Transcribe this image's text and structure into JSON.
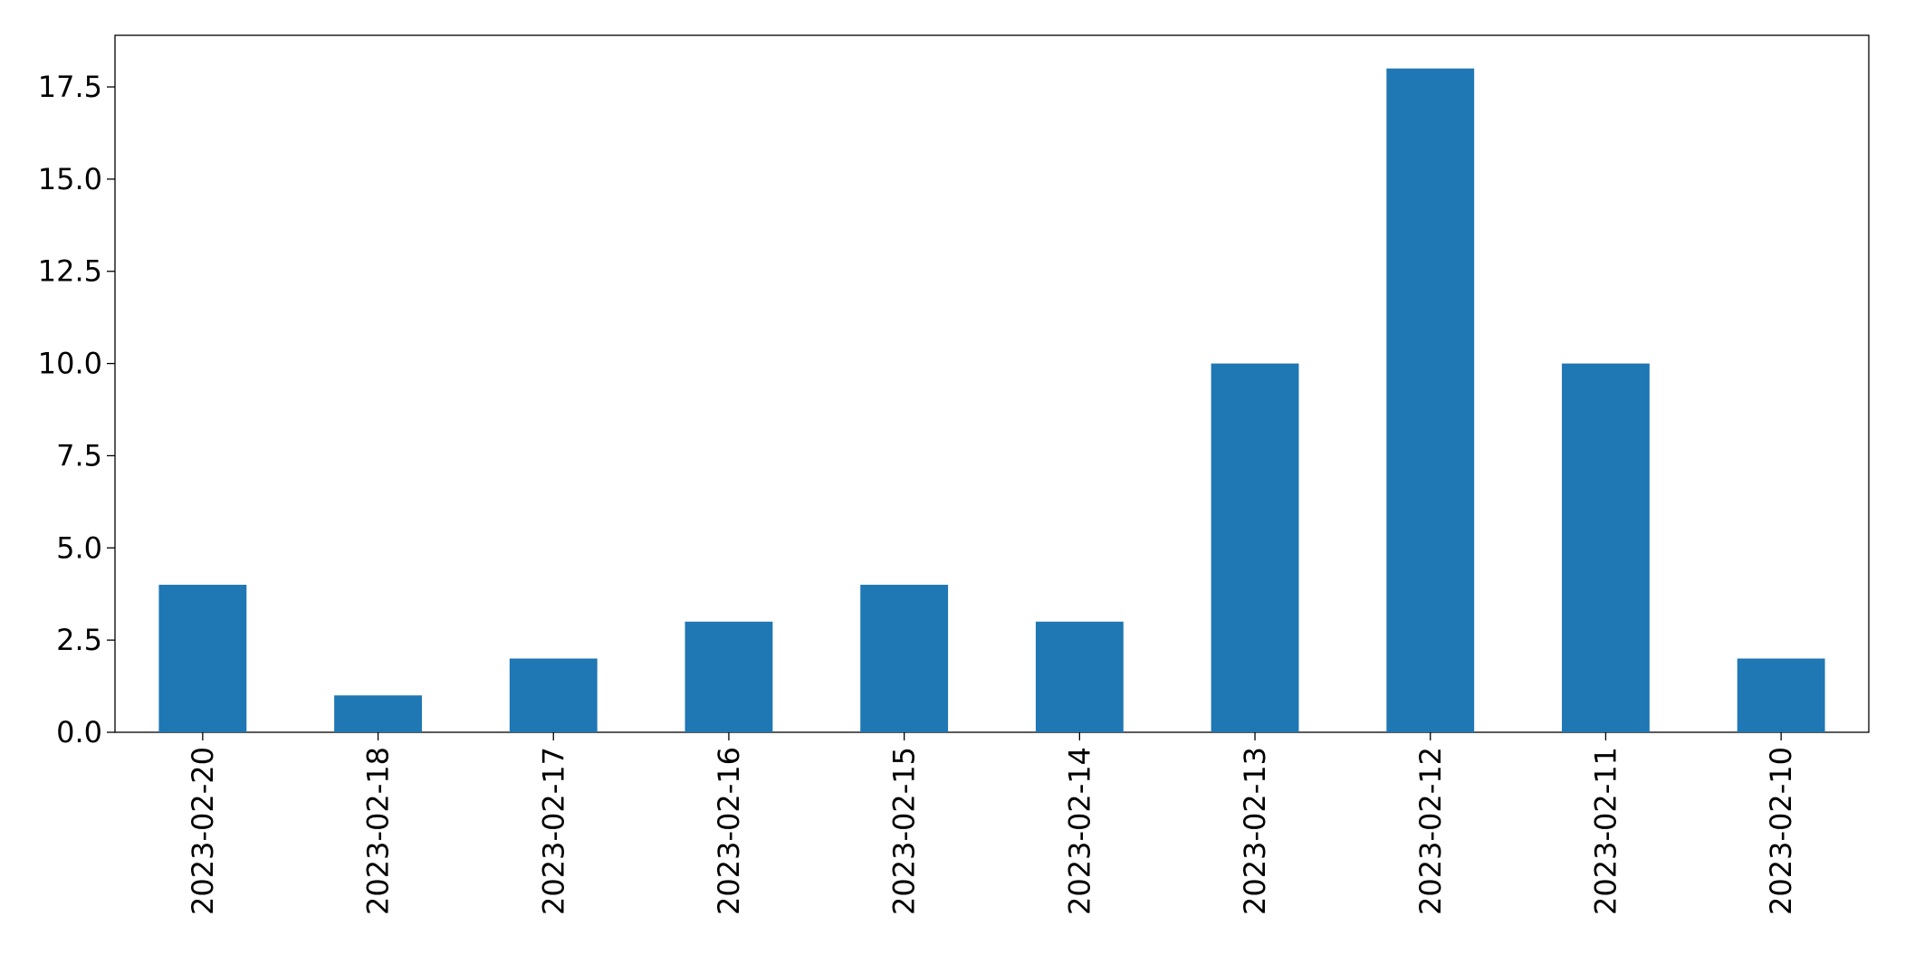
{
  "chart_data": {
    "type": "bar",
    "categories": [
      "2023-02-20",
      "2023-02-18",
      "2023-02-17",
      "2023-02-16",
      "2023-02-15",
      "2023-02-14",
      "2023-02-13",
      "2023-02-12",
      "2023-02-11",
      "2023-02-10"
    ],
    "values": [
      4,
      1,
      2,
      3,
      4,
      3,
      10,
      18,
      10,
      2
    ],
    "color": "#1f77b4",
    "ylim": [
      0,
      18.9
    ],
    "yticks": [
      {
        "value": 0,
        "label": "0.0"
      },
      2.5,
      {
        "value": 5,
        "label": "5.0"
      },
      7.5,
      {
        "value": 10,
        "label": "10.0"
      },
      12.5,
      {
        "value": 15,
        "label": "15.0"
      },
      17.5
    ],
    "grid": false
  }
}
